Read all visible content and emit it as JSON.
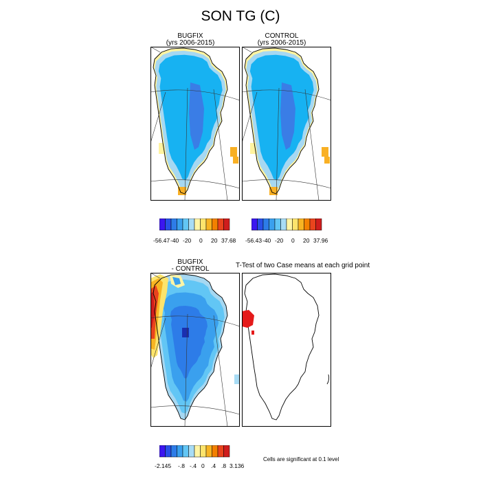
{
  "title": "SON TG (C)",
  "panels": {
    "bugfix": {
      "title": "BUGFIX",
      "subtitle": "(yrs 2006-2015)"
    },
    "control": {
      "title": "CONTROL",
      "subtitle": "(yrs 2006-2015)"
    },
    "diff": {
      "title": "BUGFIX",
      "subtitle": "- CONTROL"
    },
    "ttest": {
      "title": "T-Test of two Case means at each grid point",
      "note": "Cells are significant at 0.1 level"
    }
  },
  "colorbars": {
    "bugfix": {
      "labels": [
        "-56.47",
        "-40",
        "-20",
        "0",
        "20",
        "37.68"
      ]
    },
    "control": {
      "labels": [
        "-56.43",
        "-40",
        "-20",
        "0",
        "20",
        "37.96"
      ]
    },
    "diff": {
      "labels": [
        "-2.145",
        "-.8",
        "-.4",
        "0",
        ".4",
        ".8",
        "3.136"
      ]
    }
  },
  "colors": {
    "scale": [
      "#3c16f0",
      "#2850e8",
      "#2d7ce8",
      "#3aa0ee",
      "#62c6f5",
      "#a8dcf5",
      "#fff5a6",
      "#fde46c",
      "#f7b423",
      "#f38000",
      "#e9441d",
      "#cf1d1d"
    ],
    "ice_core": "#3a7de6",
    "ice": "#17b2f2",
    "ice_edge": "#a6d8f2",
    "coast": "#fff3a0",
    "warm": "#f9b024",
    "sig": "#e41a1a"
  }
}
